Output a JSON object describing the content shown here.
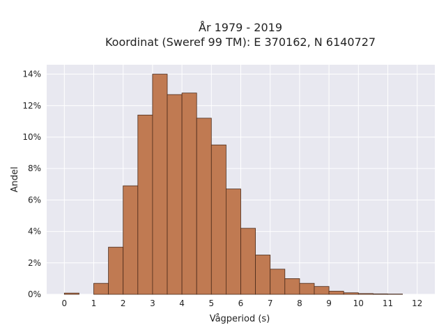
{
  "chart_data": {
    "type": "bar",
    "title": "År 1979 - 2019",
    "subtitle": "Koordinat (Sweref 99 TM): E 370162, N 6140727",
    "xlabel": "Vågperiod (s)",
    "ylabel": "Andel",
    "x_ticks": [
      "0",
      "1",
      "2",
      "3",
      "4",
      "5",
      "6",
      "7",
      "8",
      "9",
      "10",
      "11",
      "12"
    ],
    "y_ticks": [
      "0%",
      "2%",
      "4%",
      "6%",
      "8%",
      "10%",
      "12%",
      "14%"
    ],
    "xlim": [
      -0.6,
      12.6
    ],
    "ylim": [
      0,
      14.6
    ],
    "bin_width": 0.5,
    "bins": [
      {
        "x0": 0.0,
        "x1": 0.5,
        "value": 0.08
      },
      {
        "x0": 0.5,
        "x1": 1.0,
        "value": 0.0
      },
      {
        "x0": 1.0,
        "x1": 1.5,
        "value": 0.7
      },
      {
        "x0": 1.5,
        "x1": 2.0,
        "value": 3.0
      },
      {
        "x0": 2.0,
        "x1": 2.5,
        "value": 6.9
      },
      {
        "x0": 2.5,
        "x1": 3.0,
        "value": 11.4
      },
      {
        "x0": 3.0,
        "x1": 3.5,
        "value": 14.0
      },
      {
        "x0": 3.5,
        "x1": 4.0,
        "value": 12.7
      },
      {
        "x0": 4.0,
        "x1": 4.5,
        "value": 12.8
      },
      {
        "x0": 4.5,
        "x1": 5.0,
        "value": 11.2
      },
      {
        "x0": 5.0,
        "x1": 5.5,
        "value": 9.5
      },
      {
        "x0": 5.5,
        "x1": 6.0,
        "value": 6.7
      },
      {
        "x0": 6.0,
        "x1": 6.5,
        "value": 4.2
      },
      {
        "x0": 6.5,
        "x1": 7.0,
        "value": 2.5
      },
      {
        "x0": 7.0,
        "x1": 7.5,
        "value": 1.6
      },
      {
        "x0": 7.5,
        "x1": 8.0,
        "value": 1.0
      },
      {
        "x0": 8.0,
        "x1": 8.5,
        "value": 0.7
      },
      {
        "x0": 8.5,
        "x1": 9.0,
        "value": 0.5
      },
      {
        "x0": 9.0,
        "x1": 9.5,
        "value": 0.2
      },
      {
        "x0": 9.5,
        "x1": 10.0,
        "value": 0.1
      },
      {
        "x0": 10.0,
        "x1": 10.5,
        "value": 0.05
      },
      {
        "x0": 10.5,
        "x1": 11.0,
        "value": 0.03
      },
      {
        "x0": 11.0,
        "x1": 11.5,
        "value": 0.02
      }
    ],
    "grid": true,
    "colors": {
      "bar_fill": "#c07a52",
      "bar_stroke": "#4a2a1a",
      "plot_bg": "#e8e8f0",
      "grid": "#ffffff"
    }
  }
}
